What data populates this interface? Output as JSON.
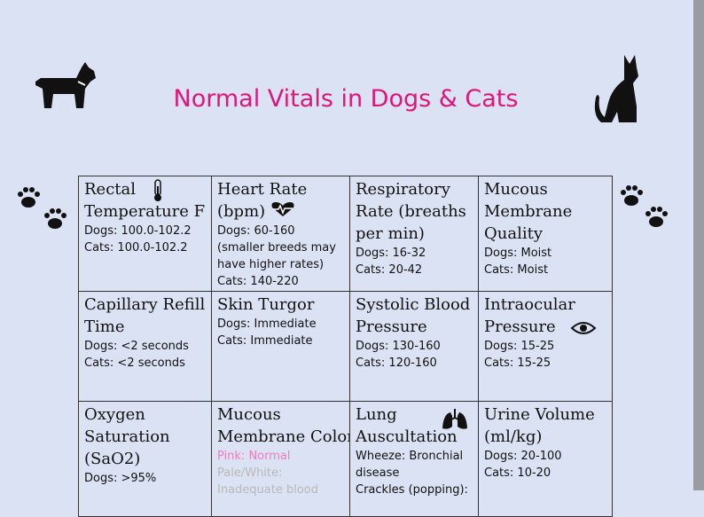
{
  "header": {
    "title": "Normal Vitals in Dogs & Cats"
  },
  "table": {
    "cells": [
      {
        "heading": [
          "Rectal",
          "Temperature F"
        ],
        "details": [
          "Dogs: 100.0-102.2",
          "Cats:  100.0-102.2"
        ]
      },
      {
        "heading": [
          "Heart Rate",
          "(bpm)"
        ],
        "details": [
          "Dogs: 60-160",
          "(smaller breeds may",
          "have higher rates)",
          "Cats: 140-220"
        ]
      },
      {
        "heading": [
          "Respiratory",
          "Rate (breaths",
          "per min)"
        ],
        "details": [
          "Dogs: 16-32",
          "Cats: 20-42"
        ]
      },
      {
        "heading": [
          "Mucous",
          "Membrane",
          "Quality"
        ],
        "details": [
          "Dogs: Moist",
          "Cats: Moist"
        ]
      },
      {
        "heading": [
          "Capillary Refill",
          "Time"
        ],
        "details": [
          "Dogs: <2 seconds",
          "Cats: <2 seconds"
        ]
      },
      {
        "heading": [
          "Skin Turgor"
        ],
        "details": [
          "Dogs: Immediate",
          "Cats: Immediate"
        ]
      },
      {
        "heading": [
          "Systolic Blood",
          "Pressure"
        ],
        "details": [
          "Dogs: 130-160",
          "Cats: 120-160"
        ]
      },
      {
        "heading": [
          "Intraocular",
          "Pressure"
        ],
        "details": [
          "Dogs: 15-25",
          "Cats: 15-25"
        ]
      },
      {
        "heading": [
          "Oxygen",
          "Saturation",
          "(SaO2)"
        ],
        "details": [
          "Dogs: >95%"
        ]
      },
      {
        "heading": [
          "Mucous",
          "Membrane Color"
        ],
        "details": [
          "Pink: Normal",
          "Pale/White:",
          "Inadequate blood"
        ]
      },
      {
        "heading": [
          "Lung",
          "Auscultation"
        ],
        "details": [
          "Wheeze: Bronchial",
          "disease",
          "Crackles (popping):"
        ]
      },
      {
        "heading": [
          "Urine Volume",
          "(ml/kg)"
        ],
        "details": [
          "Dogs: 20-100",
          "Cats: 10-20"
        ]
      }
    ]
  }
}
